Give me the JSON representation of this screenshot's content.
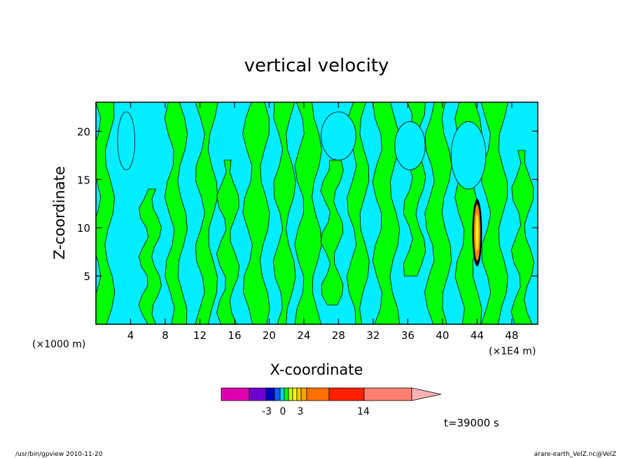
{
  "chart_data": {
    "type": "heatmap",
    "title": "vertical velocity",
    "xlabel": "X-coordinate",
    "ylabel": "Z-coordinate",
    "x_unit_left": "(×1000 m)",
    "x_unit_right": "(×1E4 m)",
    "xlim": [
      0,
      51
    ],
    "ylim": [
      0,
      23
    ],
    "x_ticks": [
      4,
      8,
      12,
      16,
      20,
      24,
      28,
      32,
      36,
      40,
      44,
      48
    ],
    "y_ticks": [
      5,
      10,
      15,
      20
    ],
    "x_tick_labels": [
      "4",
      "8",
      "12",
      "16",
      "20",
      "24",
      "28",
      "32",
      "36",
      "40",
      "44",
      "48"
    ],
    "y_tick_labels": [
      "5",
      "10",
      "15",
      "20"
    ],
    "colors": {
      "positive": "#00ff00",
      "negative": "#00eeff",
      "contour": "#000000"
    },
    "field": {
      "background": "negative",
      "positive_bands": [
        {
          "x": [
            0.0,
            1.6
          ],
          "z": [
            0,
            23
          ]
        },
        {
          "x": [
            5.5,
            7.0
          ],
          "z": [
            0,
            14
          ]
        },
        {
          "x": [
            8.5,
            10.0
          ],
          "z": [
            0,
            23
          ]
        },
        {
          "x": [
            12.0,
            13.5
          ],
          "z": [
            0,
            23
          ]
        },
        {
          "x": [
            14.5,
            16.0
          ],
          "z": [
            0,
            17
          ]
        },
        {
          "x": [
            17.5,
            19.5
          ],
          "z": [
            0,
            23
          ]
        },
        {
          "x": [
            21.0,
            22.5
          ],
          "z": [
            0,
            23
          ]
        },
        {
          "x": [
            23.5,
            25.5
          ],
          "z": [
            0,
            23
          ]
        },
        {
          "x": [
            26.5,
            28.0
          ],
          "z": [
            2,
            17
          ]
        },
        {
          "x": [
            29.5,
            31.0
          ],
          "z": [
            0,
            23
          ]
        },
        {
          "x": [
            32.5,
            34.5
          ],
          "z": [
            0,
            23
          ]
        },
        {
          "x": [
            36.0,
            37.5
          ],
          "z": [
            5,
            23
          ]
        },
        {
          "x": [
            38.5,
            40.5
          ],
          "z": [
            0,
            23
          ]
        },
        {
          "x": [
            42.0,
            44.0
          ],
          "z": [
            0,
            23
          ]
        },
        {
          "x": [
            45.0,
            47.0
          ],
          "z": [
            0,
            23
          ]
        },
        {
          "x": [
            48.5,
            50.0
          ],
          "z": [
            0,
            18
          ]
        }
      ],
      "negative_patches": [
        {
          "x": [
            2.5,
            4.5
          ],
          "z": [
            16,
            22
          ]
        },
        {
          "x": [
            26.0,
            30.0
          ],
          "z": [
            17,
            22
          ]
        },
        {
          "x": [
            34.5,
            38.0
          ],
          "z": [
            16,
            21
          ]
        },
        {
          "x": [
            41.0,
            45.0
          ],
          "z": [
            14,
            21
          ]
        }
      ],
      "strong_updraft": {
        "x": 44.0,
        "z": [
          6,
          13
        ],
        "colors": [
          "#ff8800",
          "#ffff00",
          "#000000"
        ]
      }
    },
    "colorbar": {
      "colors": [
        "#e000b0",
        "#7000d0",
        "#0000c0",
        "#1060ff",
        "#00d0ff",
        "#00ff00",
        "#c0ff00",
        "#ffff00",
        "#ffd000",
        "#ffa000",
        "#ff7000",
        "#ff2000",
        "#ff8070"
      ],
      "arrow_color": "#ffb0b0",
      "labels": [
        "-3",
        "0",
        "3",
        "14"
      ]
    },
    "time_label": "t=39000 s"
  },
  "footer": {
    "left": "/usr/bin/gpview   2010-11-20",
    "right": "arare-earth_VelZ.nc@VelZ"
  }
}
